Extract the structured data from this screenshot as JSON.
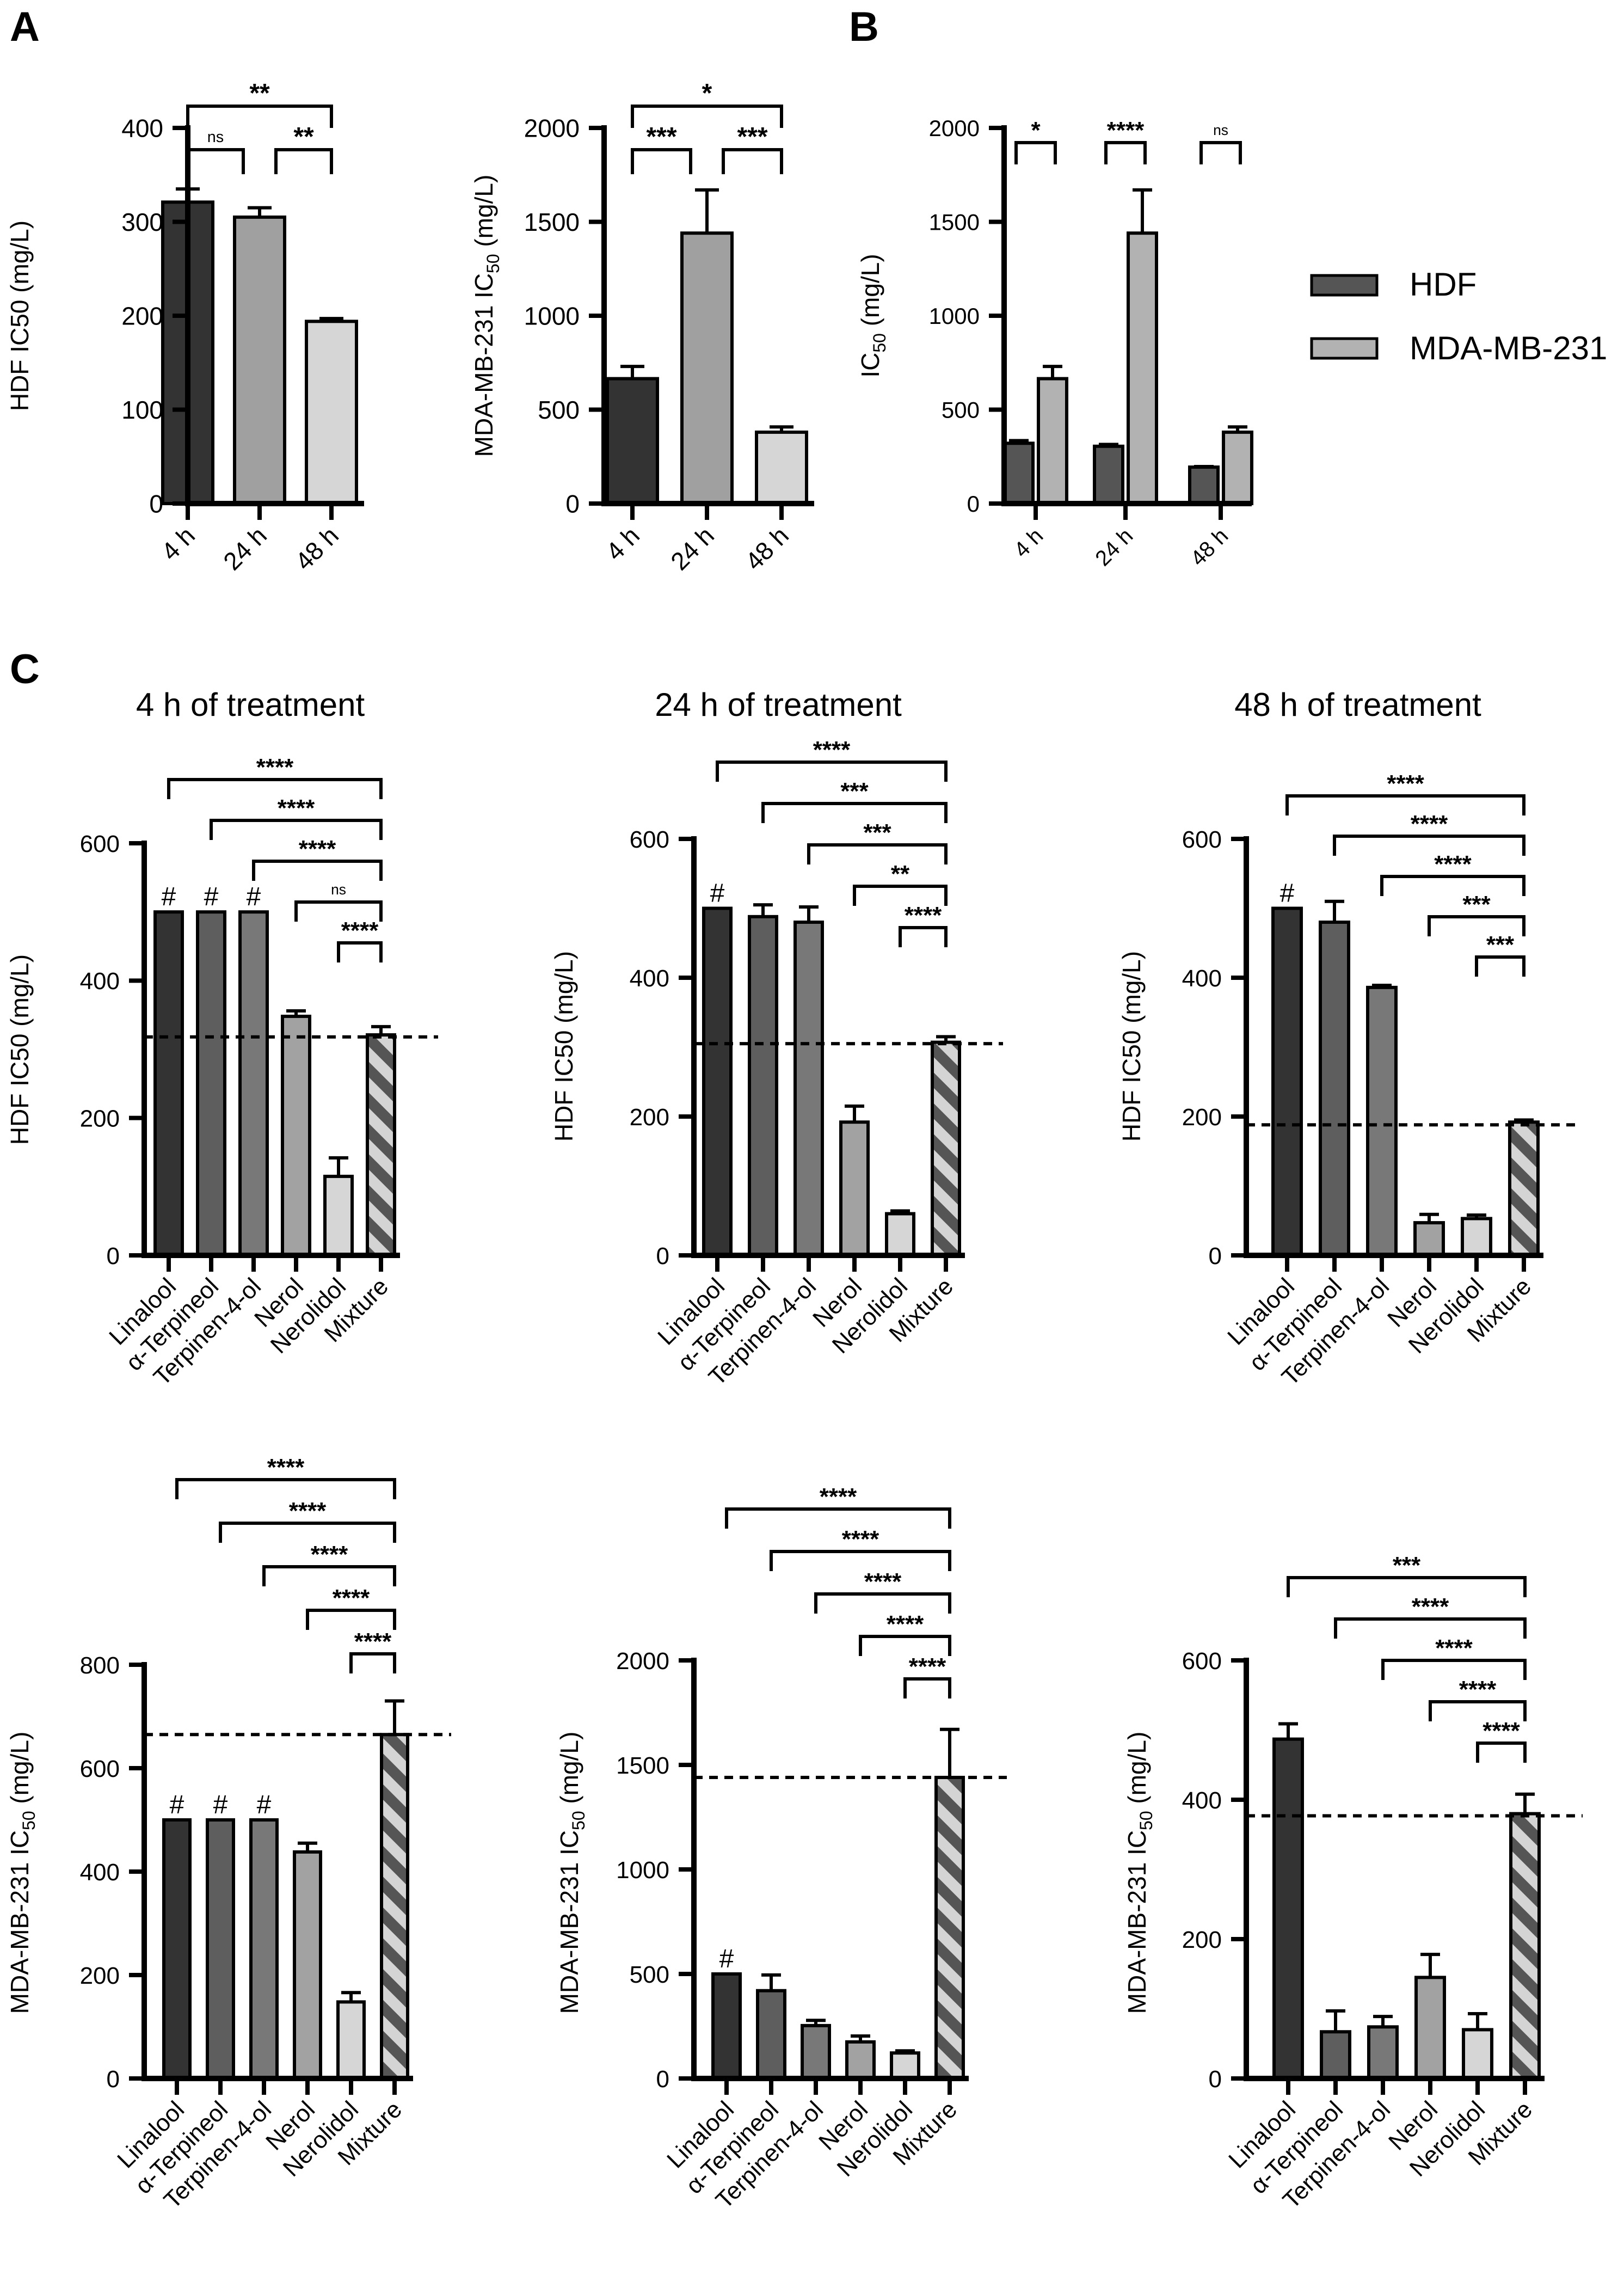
{
  "panel_labels": [
    "A",
    "B",
    "C"
  ],
  "legend": {
    "items": [
      {
        "label": "HDF",
        "color": "#555555"
      },
      {
        "label": "MDA-MB-231",
        "color": "#b2b2b2"
      }
    ]
  },
  "colors": {
    "linalool": "#333333",
    "terpineol": "#5e5e5e",
    "terpinen": "#787878",
    "nerol": "#a2a2a2",
    "nerolidol": "#d6d6d6",
    "mixture_dark": "#555555",
    "mixture_light": "#d4d4d4",
    "a_4h": "#333333",
    "a_24h": "#a0a0a0",
    "a_48h": "#d6d6d6",
    "hdf": "#555555",
    "mda": "#b2b2b2"
  },
  "chart_data": [
    {
      "id": "A1",
      "type": "bar",
      "title": "",
      "ylabel": "HDF IC50 (mg/L)",
      "categories": [
        "4 h",
        "24 h",
        "48 h"
      ],
      "values": [
        321,
        305,
        194
      ],
      "errors": [
        14,
        10,
        3
      ],
      "ylim": [
        0,
        400
      ],
      "yticks": [
        0,
        100,
        200,
        300,
        400
      ],
      "significance": [
        {
          "from": 0,
          "to": 2,
          "label": "**"
        },
        {
          "from": 0,
          "to": 1,
          "label": "ns"
        },
        {
          "from": 1,
          "to": 2,
          "label": "**"
        }
      ]
    },
    {
      "id": "A2",
      "type": "bar",
      "title": "",
      "ylabel": "MDA-MB-231 IC50 (mg/L)",
      "categories": [
        "4 h",
        "24 h",
        "48 h"
      ],
      "values": [
        665,
        1440,
        380
      ],
      "errors": [
        65,
        230,
        28
      ],
      "ylim": [
        0,
        2000
      ],
      "yticks": [
        0,
        500,
        1000,
        1500,
        2000
      ],
      "significance": [
        {
          "from": 0,
          "to": 2,
          "label": "*"
        },
        {
          "from": 0,
          "to": 1,
          "label": "***"
        },
        {
          "from": 1,
          "to": 2,
          "label": "***"
        }
      ]
    },
    {
      "id": "B",
      "type": "bar",
      "title": "",
      "ylabel": "IC50 (mg/L)",
      "categories": [
        "4 h",
        "24 h",
        "48 h"
      ],
      "series": [
        {
          "name": "HDF",
          "values": [
            321,
            305,
            194
          ],
          "errors": [
            14,
            10,
            3
          ]
        },
        {
          "name": "MDA-MB-231",
          "values": [
            665,
            1440,
            380
          ],
          "errors": [
            65,
            230,
            28
          ]
        }
      ],
      "ylim": [
        0,
        2000
      ],
      "yticks": [
        0,
        500,
        1000,
        1500,
        2000
      ],
      "significance": [
        "*",
        "****",
        "ns"
      ],
      "legend_position": "right"
    },
    {
      "id": "C1",
      "type": "bar",
      "title": "4 h of treatment",
      "ylabel": "HDF IC50 (mg/L)",
      "categories": [
        "Linalool",
        "α-Terpineol",
        "Terpinen-4-ol",
        "Nerol",
        "Nerolidol",
        "Mixture"
      ],
      "values": [
        500,
        500,
        500,
        348,
        115,
        321
      ],
      "errors": [
        0,
        0,
        0,
        8,
        27,
        12
      ],
      "flags": [
        "#",
        "#",
        "#",
        "",
        "",
        ""
      ],
      "reference_line": 318,
      "ylim": [
        0,
        600
      ],
      "yticks": [
        0,
        200,
        400,
        600
      ],
      "significance": [
        "****",
        "****",
        "****",
        "ns",
        "****"
      ]
    },
    {
      "id": "C2",
      "type": "bar",
      "title": "24 h of treatment",
      "ylabel": "HDF IC50 (mg/L)",
      "categories": [
        "Linalool",
        "α-Terpineol",
        "Terpinen-4-ol",
        "Nerol",
        "Nerolidol",
        "Mixture"
      ],
      "values": [
        500,
        488,
        480,
        192,
        60,
        307
      ],
      "errors": [
        0,
        17,
        22,
        23,
        4,
        8
      ],
      "flags": [
        "#",
        "",
        "",
        "",
        "",
        ""
      ],
      "reference_line": 305,
      "ylim": [
        0,
        600
      ],
      "yticks": [
        0,
        200,
        400,
        600
      ],
      "significance": [
        "****",
        "***",
        "***",
        "**",
        "****"
      ]
    },
    {
      "id": "C3",
      "type": "bar",
      "title": "48 h of treatment",
      "ylabel": "HDF IC50 (mg/L)",
      "categories": [
        "Linalool",
        "α-Terpineol",
        "Terpinen-4-ol",
        "Nerol",
        "Nerolidol",
        "Mixture"
      ],
      "values": [
        500,
        480,
        386,
        47,
        53,
        192
      ],
      "errors": [
        0,
        30,
        3,
        12,
        5,
        3
      ],
      "flags": [
        "#",
        "",
        "",
        "",
        "",
        ""
      ],
      "reference_line": 188,
      "ylim": [
        0,
        600
      ],
      "yticks": [
        0,
        200,
        400,
        600
      ],
      "significance": [
        "****",
        "****",
        "****",
        "***",
        "***"
      ]
    },
    {
      "id": "C4",
      "type": "bar",
      "title": "",
      "ylabel": "MDA-MB-231 IC50 (mg/L)",
      "categories": [
        "Linalool",
        "α-Terpineol",
        "Terpinen-4-ol",
        "Nerol",
        "Nerolidol",
        "Mixture"
      ],
      "values": [
        500,
        500,
        500,
        438,
        148,
        665
      ],
      "errors": [
        0,
        0,
        0,
        17,
        18,
        65
      ],
      "flags": [
        "#",
        "#",
        "#",
        "",
        "",
        ""
      ],
      "reference_line": 665,
      "ylim": [
        0,
        800
      ],
      "yticks": [
        0,
        200,
        400,
        600,
        800
      ],
      "significance": [
        "****",
        "****",
        "****",
        "****",
        "****"
      ]
    },
    {
      "id": "C5",
      "type": "bar",
      "title": "",
      "ylabel": "MDA-MB-231 IC50 (mg/L)",
      "categories": [
        "Linalool",
        "α-Terpineol",
        "Terpinen-4-ol",
        "Nerol",
        "Nerolidol",
        "Mixture"
      ],
      "values": [
        500,
        420,
        253,
        175,
        122,
        1440
      ],
      "errors": [
        0,
        75,
        25,
        28,
        10,
        230
      ],
      "flags": [
        "#",
        "",
        "",
        "",
        "",
        ""
      ],
      "reference_line": 1440,
      "ylim": [
        0,
        2000
      ],
      "yticks": [
        0,
        500,
        1000,
        1500,
        2000
      ],
      "significance": [
        "****",
        "****",
        "****",
        "****",
        "****"
      ]
    },
    {
      "id": "C6",
      "type": "bar",
      "title": "",
      "ylabel": "MDA-MB-231 IC50 (mg/L)",
      "categories": [
        "Linalool",
        "α-Terpineol",
        "Terpinen-4-ol",
        "Nerol",
        "Nerolidol",
        "Mixture"
      ],
      "values": [
        487,
        67,
        74,
        145,
        70,
        380
      ],
      "errors": [
        22,
        30,
        15,
        33,
        23,
        28
      ],
      "flags": [
        "",
        "",
        "",
        "",
        "",
        ""
      ],
      "reference_line": 377,
      "ylim": [
        0,
        600
      ],
      "yticks": [
        0,
        200,
        400,
        600
      ],
      "significance": [
        "***",
        "****",
        "****",
        "****",
        "****"
      ]
    }
  ]
}
